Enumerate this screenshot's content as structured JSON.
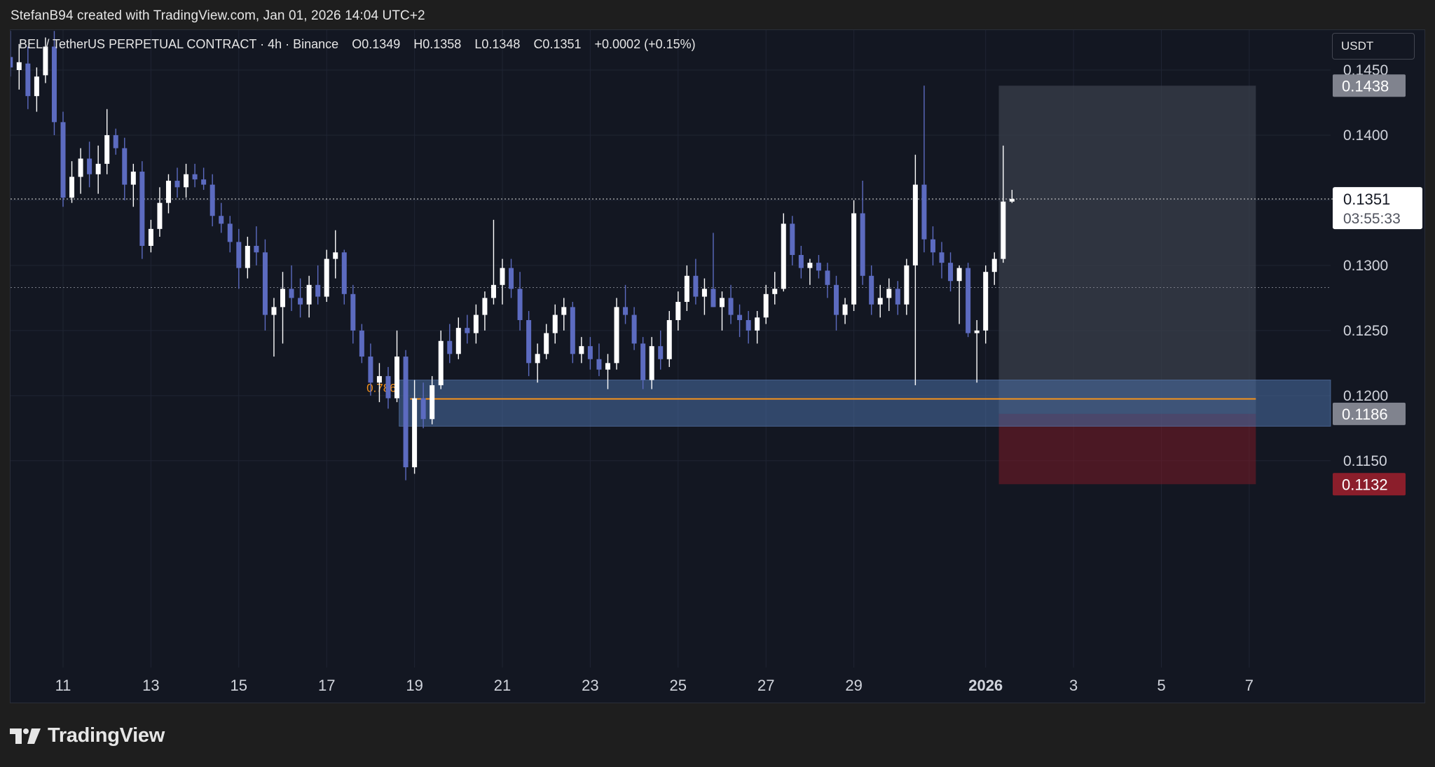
{
  "header": {
    "attribution": "StefanB94 created with TradingView.com, Jan 01, 2026 14:04 UTC+2"
  },
  "legend": {
    "symbol": "BEL / TetherUS PERPETUAL CONTRACT · 4h · Binance",
    "open": "O0.1349",
    "high": "H0.1358",
    "low": "L0.1348",
    "close": "C0.1351",
    "change": "+0.0002 (+0.15%)"
  },
  "currency_button": {
    "label": "USDT"
  },
  "footer": {
    "brand": "TradingView"
  },
  "colors": {
    "background": "#131722",
    "up_candle": "#ffffff",
    "down_candle": "#5c6bc0",
    "grid": "#1f2433",
    "axis_text": "#d1d4dc",
    "zone": "#4a6fa5",
    "fib_line": "#f7931a",
    "target_zone": "#3a3f4b",
    "stop_zone": "#7a1a26",
    "stop_label": "#8b1e2b",
    "target_label": "#80838e"
  },
  "chart_data": {
    "type": "candlestick",
    "timeframe": "4h",
    "y_ticks": [
      "0.1150",
      "0.1200",
      "0.1250",
      "0.1300",
      "0.1350",
      "0.1400",
      "0.1450"
    ],
    "x_ticks": [
      {
        "label": "11",
        "day": 11
      },
      {
        "label": "13",
        "day": 13
      },
      {
        "label": "15",
        "day": 15
      },
      {
        "label": "17",
        "day": 17
      },
      {
        "label": "19",
        "day": 19
      },
      {
        "label": "21",
        "day": 21
      },
      {
        "label": "23",
        "day": 23
      },
      {
        "label": "25",
        "day": 25
      },
      {
        "label": "27",
        "day": 27
      },
      {
        "label": "29",
        "day": 29
      },
      {
        "label": "2026",
        "day": 32,
        "bold": true
      },
      {
        "label": "3",
        "day": 34
      },
      {
        "label": "5",
        "day": 36
      },
      {
        "label": "7",
        "day": 38
      }
    ],
    "last_price": {
      "value": "0.1351",
      "countdown": "03:55:33"
    },
    "price_labels": [
      {
        "value": "0.1438",
        "role": "target"
      },
      {
        "value": "0.1186",
        "role": "entry"
      },
      {
        "value": "0.1132",
        "role": "stop"
      }
    ],
    "fib_level": {
      "label": "0.786",
      "price": 0.11975
    },
    "support_zone": {
      "from_day": 18.65,
      "top": 0.1212,
      "bottom": 0.11765
    },
    "position": {
      "from_day": 32.3,
      "to_day": 38.15,
      "entry": 0.1186,
      "target": 0.1438,
      "stop": 0.1132
    },
    "candles": [
      {
        "d": 9.8,
        "o": 0.146,
        "h": 0.148,
        "l": 0.1445,
        "c": 0.1452
      },
      {
        "d": 10.0,
        "o": 0.145,
        "h": 0.147,
        "l": 0.1435,
        "c": 0.1456
      },
      {
        "d": 10.2,
        "o": 0.1455,
        "h": 0.1468,
        "l": 0.142,
        "c": 0.143
      },
      {
        "d": 10.4,
        "o": 0.143,
        "h": 0.1452,
        "l": 0.1418,
        "c": 0.1445
      },
      {
        "d": 10.6,
        "o": 0.1446,
        "h": 0.1475,
        "l": 0.144,
        "c": 0.1468
      },
      {
        "d": 10.8,
        "o": 0.1468,
        "h": 0.148,
        "l": 0.14,
        "c": 0.141
      },
      {
        "d": 11.0,
        "o": 0.141,
        "h": 0.1418,
        "l": 0.1345,
        "c": 0.1352
      },
      {
        "d": 11.2,
        "o": 0.1352,
        "h": 0.138,
        "l": 0.1348,
        "c": 0.1368
      },
      {
        "d": 11.4,
        "o": 0.1368,
        "h": 0.139,
        "l": 0.1355,
        "c": 0.1382
      },
      {
        "d": 11.6,
        "o": 0.1382,
        "h": 0.1395,
        "l": 0.136,
        "c": 0.137
      },
      {
        "d": 11.8,
        "o": 0.137,
        "h": 0.1392,
        "l": 0.1355,
        "c": 0.1378
      },
      {
        "d": 12.0,
        "o": 0.1378,
        "h": 0.142,
        "l": 0.137,
        "c": 0.14
      },
      {
        "d": 12.2,
        "o": 0.14,
        "h": 0.1405,
        "l": 0.1385,
        "c": 0.139
      },
      {
        "d": 12.4,
        "o": 0.139,
        "h": 0.1398,
        "l": 0.135,
        "c": 0.1362
      },
      {
        "d": 12.6,
        "o": 0.1362,
        "h": 0.1378,
        "l": 0.1345,
        "c": 0.1372
      },
      {
        "d": 12.8,
        "o": 0.1372,
        "h": 0.138,
        "l": 0.1305,
        "c": 0.1315
      },
      {
        "d": 13.0,
        "o": 0.1315,
        "h": 0.1335,
        "l": 0.131,
        "c": 0.1328
      },
      {
        "d": 13.2,
        "o": 0.1328,
        "h": 0.136,
        "l": 0.1322,
        "c": 0.1348
      },
      {
        "d": 13.4,
        "o": 0.1348,
        "h": 0.137,
        "l": 0.134,
        "c": 0.1365
      },
      {
        "d": 13.6,
        "o": 0.1365,
        "h": 0.1375,
        "l": 0.1352,
        "c": 0.136
      },
      {
        "d": 13.8,
        "o": 0.136,
        "h": 0.1378,
        "l": 0.1352,
        "c": 0.137
      },
      {
        "d": 14.0,
        "o": 0.137,
        "h": 0.1378,
        "l": 0.136,
        "c": 0.1366
      },
      {
        "d": 14.2,
        "o": 0.1366,
        "h": 0.1375,
        "l": 0.1358,
        "c": 0.1362
      },
      {
        "d": 14.4,
        "o": 0.1362,
        "h": 0.137,
        "l": 0.133,
        "c": 0.1338
      },
      {
        "d": 14.6,
        "o": 0.1338,
        "h": 0.1348,
        "l": 0.1325,
        "c": 0.1332
      },
      {
        "d": 14.8,
        "o": 0.1332,
        "h": 0.1338,
        "l": 0.131,
        "c": 0.1318
      },
      {
        "d": 15.0,
        "o": 0.1318,
        "h": 0.1328,
        "l": 0.1282,
        "c": 0.1298
      },
      {
        "d": 15.2,
        "o": 0.1298,
        "h": 0.1322,
        "l": 0.129,
        "c": 0.1315
      },
      {
        "d": 15.4,
        "o": 0.1315,
        "h": 0.133,
        "l": 0.13,
        "c": 0.131
      },
      {
        "d": 15.6,
        "o": 0.131,
        "h": 0.132,
        "l": 0.125,
        "c": 0.1262
      },
      {
        "d": 15.8,
        "o": 0.1262,
        "h": 0.1275,
        "l": 0.123,
        "c": 0.1268
      },
      {
        "d": 16.0,
        "o": 0.1268,
        "h": 0.1295,
        "l": 0.124,
        "c": 0.1282
      },
      {
        "d": 16.2,
        "o": 0.1282,
        "h": 0.13,
        "l": 0.1265,
        "c": 0.1275
      },
      {
        "d": 16.4,
        "o": 0.1275,
        "h": 0.129,
        "l": 0.126,
        "c": 0.127
      },
      {
        "d": 16.6,
        "o": 0.127,
        "h": 0.1292,
        "l": 0.126,
        "c": 0.1285
      },
      {
        "d": 16.8,
        "o": 0.1285,
        "h": 0.13,
        "l": 0.127,
        "c": 0.1276
      },
      {
        "d": 17.0,
        "o": 0.1276,
        "h": 0.1312,
        "l": 0.1272,
        "c": 0.1305
      },
      {
        "d": 17.2,
        "o": 0.1305,
        "h": 0.1327,
        "l": 0.129,
        "c": 0.131
      },
      {
        "d": 17.4,
        "o": 0.131,
        "h": 0.1312,
        "l": 0.127,
        "c": 0.1278
      },
      {
        "d": 17.6,
        "o": 0.1278,
        "h": 0.1285,
        "l": 0.124,
        "c": 0.125
      },
      {
        "d": 17.8,
        "o": 0.125,
        "h": 0.1255,
        "l": 0.1225,
        "c": 0.123
      },
      {
        "d": 18.0,
        "o": 0.123,
        "h": 0.124,
        "l": 0.12,
        "c": 0.121
      },
      {
        "d": 18.2,
        "o": 0.121,
        "h": 0.1225,
        "l": 0.1195,
        "c": 0.1215
      },
      {
        "d": 18.4,
        "o": 0.1215,
        "h": 0.1222,
        "l": 0.119,
        "c": 0.1198
      },
      {
        "d": 18.6,
        "o": 0.1198,
        "h": 0.125,
        "l": 0.1195,
        "c": 0.123
      },
      {
        "d": 18.8,
        "o": 0.123,
        "h": 0.1235,
        "l": 0.1135,
        "c": 0.1145
      },
      {
        "d": 19.0,
        "o": 0.1145,
        "h": 0.1212,
        "l": 0.114,
        "c": 0.1198
      },
      {
        "d": 19.2,
        "o": 0.1198,
        "h": 0.121,
        "l": 0.1175,
        "c": 0.1182
      },
      {
        "d": 19.4,
        "o": 0.1182,
        "h": 0.1215,
        "l": 0.1178,
        "c": 0.1208
      },
      {
        "d": 19.6,
        "o": 0.1208,
        "h": 0.125,
        "l": 0.1205,
        "c": 0.1242
      },
      {
        "d": 19.8,
        "o": 0.1242,
        "h": 0.1255,
        "l": 0.1225,
        "c": 0.1232
      },
      {
        "d": 20.0,
        "o": 0.1232,
        "h": 0.126,
        "l": 0.1228,
        "c": 0.1252
      },
      {
        "d": 20.2,
        "o": 0.1252,
        "h": 0.1262,
        "l": 0.124,
        "c": 0.1248
      },
      {
        "d": 20.4,
        "o": 0.1248,
        "h": 0.127,
        "l": 0.124,
        "c": 0.1262
      },
      {
        "d": 20.6,
        "o": 0.1262,
        "h": 0.128,
        "l": 0.125,
        "c": 0.1275
      },
      {
        "d": 20.8,
        "o": 0.1275,
        "h": 0.1335,
        "l": 0.127,
        "c": 0.1285
      },
      {
        "d": 21.0,
        "o": 0.1285,
        "h": 0.1305,
        "l": 0.127,
        "c": 0.1298
      },
      {
        "d": 21.2,
        "o": 0.1298,
        "h": 0.1305,
        "l": 0.1275,
        "c": 0.1282
      },
      {
        "d": 21.4,
        "o": 0.1282,
        "h": 0.1295,
        "l": 0.125,
        "c": 0.1258
      },
      {
        "d": 21.6,
        "o": 0.1258,
        "h": 0.1265,
        "l": 0.1215,
        "c": 0.1225
      },
      {
        "d": 21.8,
        "o": 0.1225,
        "h": 0.124,
        "l": 0.121,
        "c": 0.1232
      },
      {
        "d": 22.0,
        "o": 0.1232,
        "h": 0.1255,
        "l": 0.1228,
        "c": 0.1248
      },
      {
        "d": 22.2,
        "o": 0.1248,
        "h": 0.127,
        "l": 0.124,
        "c": 0.1262
      },
      {
        "d": 22.4,
        "o": 0.1262,
        "h": 0.1275,
        "l": 0.125,
        "c": 0.1268
      },
      {
        "d": 22.6,
        "o": 0.1268,
        "h": 0.1272,
        "l": 0.1225,
        "c": 0.1232
      },
      {
        "d": 22.8,
        "o": 0.1232,
        "h": 0.1245,
        "l": 0.1225,
        "c": 0.1238
      },
      {
        "d": 23.0,
        "o": 0.1238,
        "h": 0.1245,
        "l": 0.122,
        "c": 0.1228
      },
      {
        "d": 23.2,
        "o": 0.1228,
        "h": 0.124,
        "l": 0.1215,
        "c": 0.122
      },
      {
        "d": 23.4,
        "o": 0.122,
        "h": 0.1232,
        "l": 0.1205,
        "c": 0.1225
      },
      {
        "d": 23.6,
        "o": 0.1225,
        "h": 0.1275,
        "l": 0.122,
        "c": 0.1268
      },
      {
        "d": 23.8,
        "o": 0.1268,
        "h": 0.1285,
        "l": 0.1255,
        "c": 0.1262
      },
      {
        "d": 24.0,
        "o": 0.1262,
        "h": 0.1268,
        "l": 0.1235,
        "c": 0.124
      },
      {
        "d": 24.2,
        "o": 0.124,
        "h": 0.1245,
        "l": 0.1205,
        "c": 0.1212
      },
      {
        "d": 24.4,
        "o": 0.1212,
        "h": 0.1245,
        "l": 0.1205,
        "c": 0.1238
      },
      {
        "d": 24.6,
        "o": 0.1238,
        "h": 0.125,
        "l": 0.122,
        "c": 0.1228
      },
      {
        "d": 24.8,
        "o": 0.1228,
        "h": 0.1265,
        "l": 0.1222,
        "c": 0.1258
      },
      {
        "d": 25.0,
        "o": 0.1258,
        "h": 0.128,
        "l": 0.125,
        "c": 0.1272
      },
      {
        "d": 25.2,
        "o": 0.1272,
        "h": 0.13,
        "l": 0.1265,
        "c": 0.1292
      },
      {
        "d": 25.4,
        "o": 0.1292,
        "h": 0.1305,
        "l": 0.127,
        "c": 0.1276
      },
      {
        "d": 25.6,
        "o": 0.1276,
        "h": 0.129,
        "l": 0.1262,
        "c": 0.1282
      },
      {
        "d": 25.8,
        "o": 0.1282,
        "h": 0.1325,
        "l": 0.1268,
        "c": 0.1268
      },
      {
        "d": 26.0,
        "o": 0.1268,
        "h": 0.128,
        "l": 0.125,
        "c": 0.1275
      },
      {
        "d": 26.2,
        "o": 0.1275,
        "h": 0.1285,
        "l": 0.1255,
        "c": 0.1262
      },
      {
        "d": 26.4,
        "o": 0.1262,
        "h": 0.127,
        "l": 0.1245,
        "c": 0.1258
      },
      {
        "d": 26.6,
        "o": 0.1258,
        "h": 0.1265,
        "l": 0.124,
        "c": 0.125
      },
      {
        "d": 26.8,
        "o": 0.125,
        "h": 0.1265,
        "l": 0.124,
        "c": 0.126
      },
      {
        "d": 27.0,
        "o": 0.126,
        "h": 0.1285,
        "l": 0.1255,
        "c": 0.1278
      },
      {
        "d": 27.2,
        "o": 0.1278,
        "h": 0.1295,
        "l": 0.127,
        "c": 0.1282
      },
      {
        "d": 27.4,
        "o": 0.1282,
        "h": 0.134,
        "l": 0.128,
        "c": 0.1332
      },
      {
        "d": 27.6,
        "o": 0.1332,
        "h": 0.1338,
        "l": 0.13,
        "c": 0.1308
      },
      {
        "d": 27.8,
        "o": 0.1308,
        "h": 0.1315,
        "l": 0.129,
        "c": 0.1298
      },
      {
        "d": 28.0,
        "o": 0.1298,
        "h": 0.1305,
        "l": 0.1285,
        "c": 0.1302
      },
      {
        "d": 28.2,
        "o": 0.1302,
        "h": 0.1308,
        "l": 0.129,
        "c": 0.1296
      },
      {
        "d": 28.4,
        "o": 0.1296,
        "h": 0.1302,
        "l": 0.1275,
        "c": 0.1285
      },
      {
        "d": 28.6,
        "o": 0.1285,
        "h": 0.1292,
        "l": 0.125,
        "c": 0.1262
      },
      {
        "d": 28.8,
        "o": 0.1262,
        "h": 0.1275,
        "l": 0.1255,
        "c": 0.127
      },
      {
        "d": 29.0,
        "o": 0.127,
        "h": 0.135,
        "l": 0.1265,
        "c": 0.134
      },
      {
        "d": 29.2,
        "o": 0.134,
        "h": 0.1365,
        "l": 0.1285,
        "c": 0.1292
      },
      {
        "d": 29.4,
        "o": 0.1292,
        "h": 0.13,
        "l": 0.1262,
        "c": 0.127
      },
      {
        "d": 29.6,
        "o": 0.127,
        "h": 0.1285,
        "l": 0.126,
        "c": 0.1275
      },
      {
        "d": 29.8,
        "o": 0.1275,
        "h": 0.129,
        "l": 0.1265,
        "c": 0.1282
      },
      {
        "d": 30.0,
        "o": 0.1282,
        "h": 0.1288,
        "l": 0.1262,
        "c": 0.127
      },
      {
        "d": 30.2,
        "o": 0.127,
        "h": 0.1305,
        "l": 0.1262,
        "c": 0.13
      },
      {
        "d": 30.4,
        "o": 0.13,
        "h": 0.1385,
        "l": 0.1208,
        "c": 0.1362
      },
      {
        "d": 30.6,
        "o": 0.1362,
        "h": 0.1438,
        "l": 0.131,
        "c": 0.132
      },
      {
        "d": 30.8,
        "o": 0.132,
        "h": 0.133,
        "l": 0.13,
        "c": 0.131
      },
      {
        "d": 31.0,
        "o": 0.131,
        "h": 0.1318,
        "l": 0.129,
        "c": 0.1302
      },
      {
        "d": 31.2,
        "o": 0.1302,
        "h": 0.131,
        "l": 0.128,
        "c": 0.1288
      },
      {
        "d": 31.4,
        "o": 0.1288,
        "h": 0.13,
        "l": 0.1255,
        "c": 0.1298
      },
      {
        "d": 31.6,
        "o": 0.1298,
        "h": 0.1302,
        "l": 0.1245,
        "c": 0.1248
      },
      {
        "d": 31.8,
        "o": 0.1248,
        "h": 0.1258,
        "l": 0.121,
        "c": 0.125
      },
      {
        "d": 32.0,
        "o": 0.125,
        "h": 0.13,
        "l": 0.124,
        "c": 0.1295
      },
      {
        "d": 32.2,
        "o": 0.1295,
        "h": 0.131,
        "l": 0.1285,
        "c": 0.1305
      },
      {
        "d": 32.4,
        "o": 0.1305,
        "h": 0.1392,
        "l": 0.1302,
        "c": 0.1349
      },
      {
        "d": 32.6,
        "o": 0.1349,
        "h": 0.1358,
        "l": 0.1348,
        "c": 0.1351
      }
    ]
  }
}
